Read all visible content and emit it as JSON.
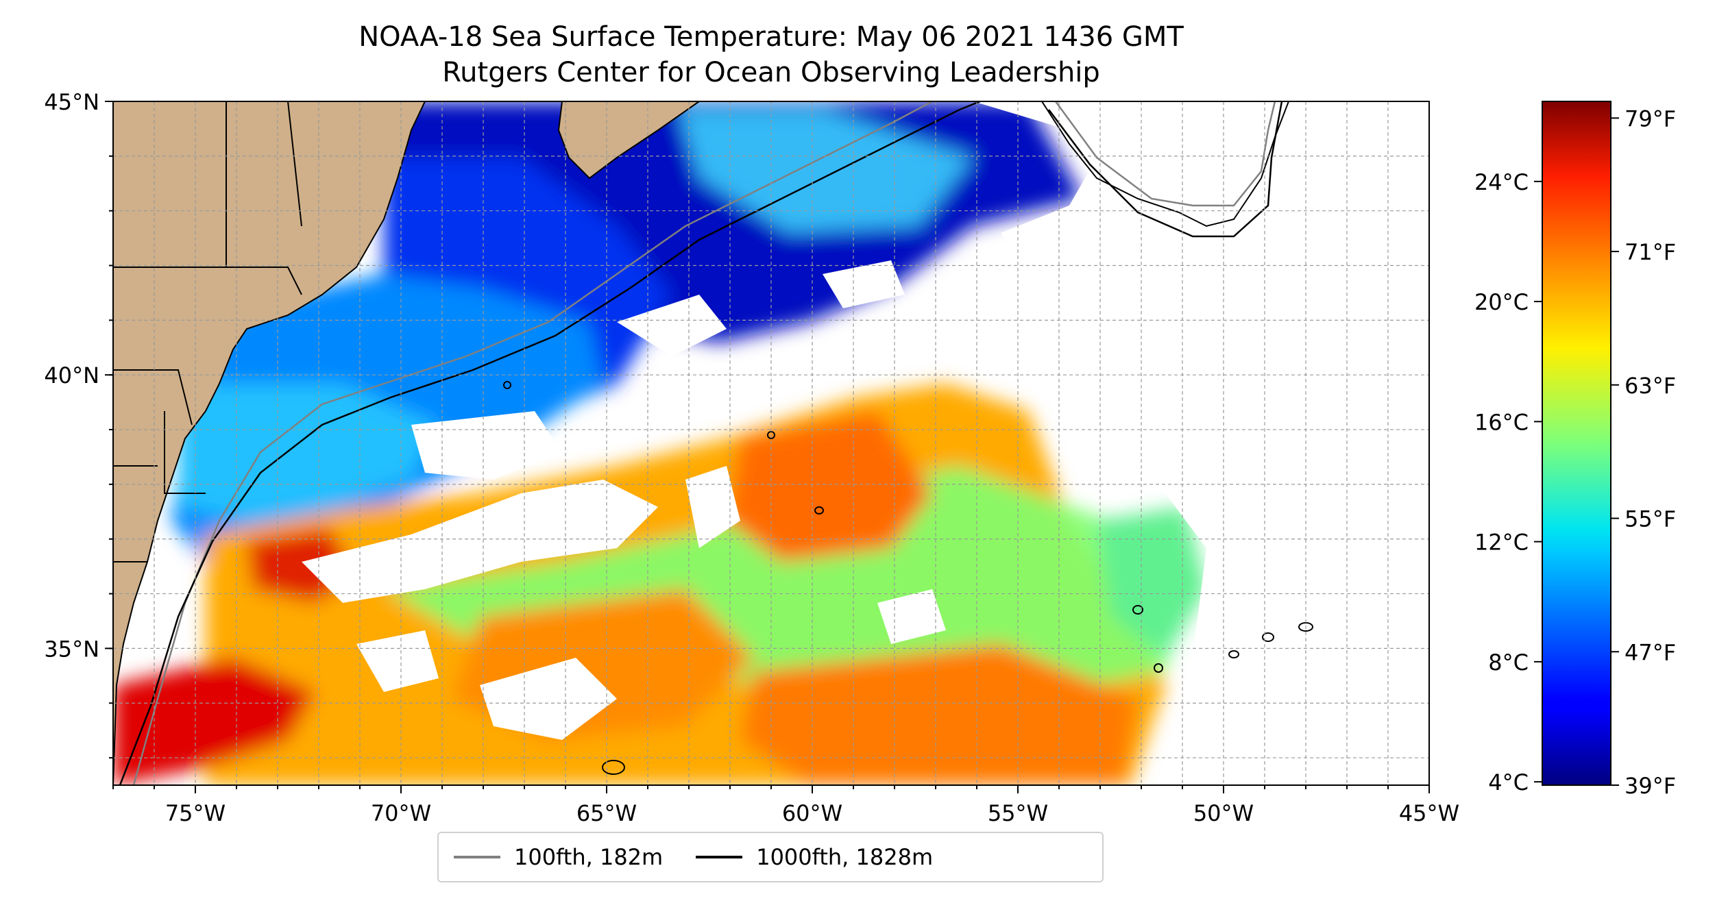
{
  "title": {
    "line1": "NOAA-18 Sea Surface Temperature: May 06 2021 1436 GMT",
    "line2": "Rutgers Center for Ocean Observing Leadership"
  },
  "map": {
    "lon_range": [
      -77,
      -45
    ],
    "lat_range": [
      32.5,
      45
    ],
    "lon_ticks": [
      {
        "value": -75,
        "label": "75°W"
      },
      {
        "value": -70,
        "label": "70°W"
      },
      {
        "value": -65,
        "label": "65°W"
      },
      {
        "value": -60,
        "label": "60°W"
      },
      {
        "value": -55,
        "label": "55°W"
      },
      {
        "value": -50,
        "label": "50°W"
      },
      {
        "value": -45,
        "label": "45°W"
      }
    ],
    "lat_ticks": [
      {
        "value": 45,
        "label": "45°N"
      },
      {
        "value": 40,
        "label": "40°N"
      },
      {
        "value": 35,
        "label": "35°N"
      }
    ],
    "gridlines": true,
    "land_color": "#cfb08a",
    "background_color": "#ffffff"
  },
  "colorbar": {
    "colormap": "jet",
    "celsius_ticks": [
      {
        "value": 4,
        "label": "4°C"
      },
      {
        "value": 8,
        "label": "8°C"
      },
      {
        "value": 12,
        "label": "12°C"
      },
      {
        "value": 16,
        "label": "16°C"
      },
      {
        "value": 20,
        "label": "20°C"
      },
      {
        "value": 24,
        "label": "24°C"
      }
    ],
    "fahrenheit_ticks": [
      {
        "value": 39,
        "label": "39°F"
      },
      {
        "value": 47,
        "label": "47°F"
      },
      {
        "value": 55,
        "label": "55°F"
      },
      {
        "value": 63,
        "label": "63°F"
      },
      {
        "value": 71,
        "label": "71°F"
      },
      {
        "value": 79,
        "label": "79°F"
      }
    ],
    "range_f": [
      39,
      80
    ]
  },
  "legend": {
    "items": [
      {
        "label": "100fth, 182m",
        "color": "#808080"
      },
      {
        "label": "1000fth, 1828m",
        "color": "#000000"
      }
    ]
  }
}
